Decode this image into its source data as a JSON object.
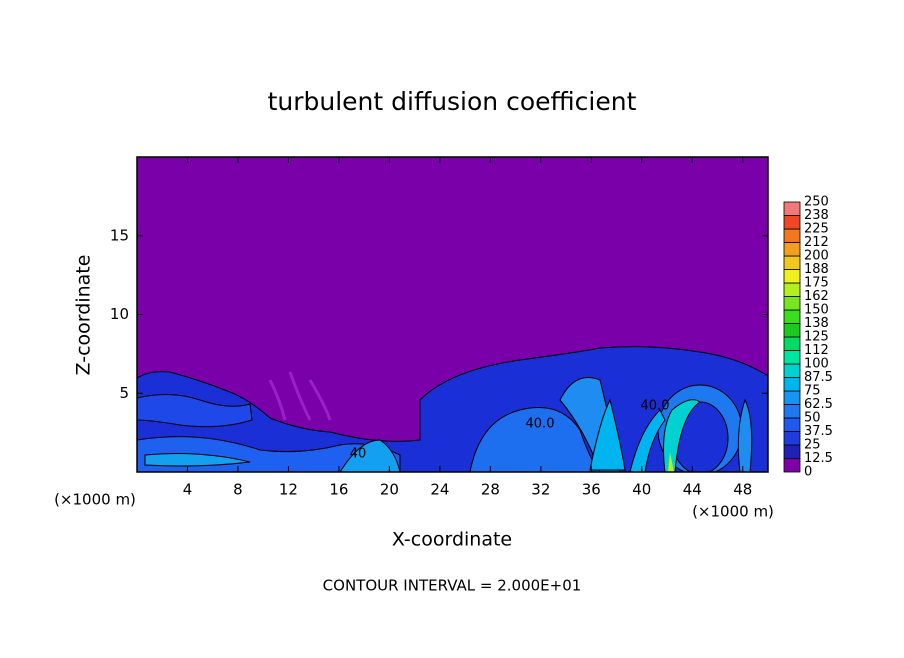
{
  "chart_data": {
    "type": "contour",
    "title": "turbulent diffusion coefficient",
    "xlabel": "X-coordinate",
    "ylabel": "Z-coordinate",
    "x_unit_label": "(×1000 m)",
    "y_unit_label": "(×1000 m)",
    "footnote": "CONTOUR INTERVAL = 2.000E+01",
    "xlim": [
      0,
      50
    ],
    "ylim": [
      0,
      20
    ],
    "xticks": [
      4,
      8,
      12,
      16,
      20,
      24,
      28,
      32,
      36,
      40,
      44,
      48
    ],
    "yticks": [
      5,
      10,
      15
    ],
    "levels": [
      0,
      12.5,
      25,
      37.5,
      50,
      62.5,
      75,
      87.5,
      100,
      {
        "value": 112.5,
        "label": "112"
      },
      125,
      {
        "value": 137.5,
        "label": "138"
      },
      150,
      {
        "value": 162.5,
        "label": "162"
      },
      175,
      {
        "value": 187.5,
        "label": "188"
      },
      200,
      {
        "value": 212.5,
        "label": "212"
      },
      225,
      {
        "value": 237.5,
        "label": "238"
      },
      250
    ],
    "colors": [
      "#8000a8",
      "#2020b4",
      "#1e3cdc",
      "#1e5af0",
      "#1e78f0",
      "#1496f0",
      "#00b4f0",
      "#00d2d2",
      "#00e6a0",
      "#00dc64",
      "#1ec81e",
      "#3cdc1e",
      "#78e61e",
      "#b4f01e",
      "#f0f01e",
      "#f0c81e",
      "#f0a01e",
      "#f0781e",
      "#f04628",
      "#f07878"
    ],
    "contour_labels": [
      "40.0",
      "40.0",
      "40"
    ]
  }
}
